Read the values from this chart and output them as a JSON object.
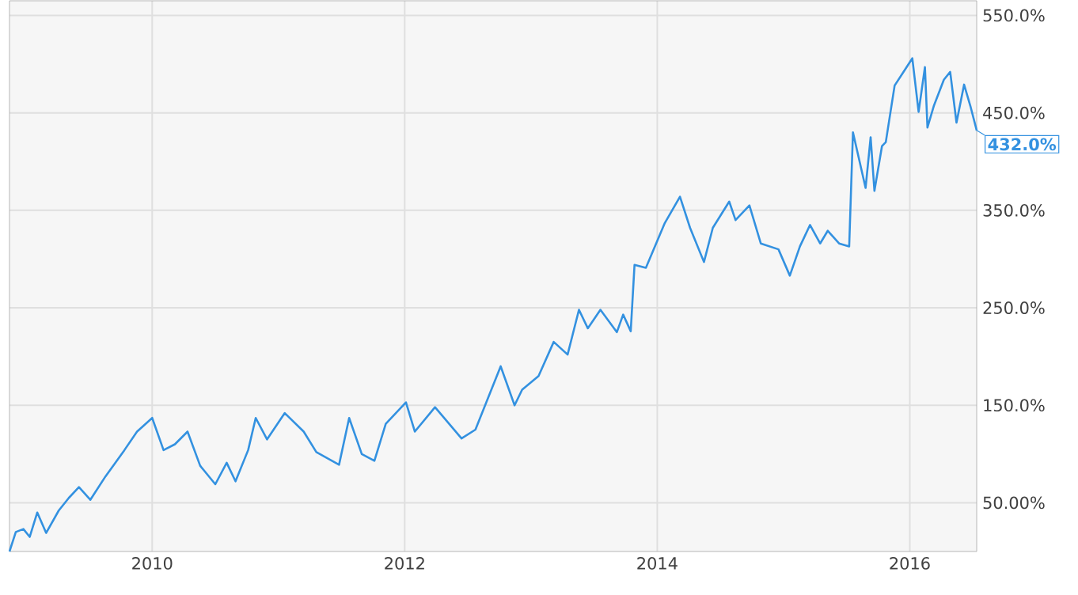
{
  "chart_data": {
    "type": "line",
    "x": [
      2008.87,
      2008.92,
      2008.98,
      2009.03,
      2009.09,
      2009.16,
      2009.26,
      2009.34,
      2009.42,
      2009.51,
      2009.63,
      2009.78,
      2009.88,
      2010.0,
      2010.09,
      2010.18,
      2010.28,
      2010.38,
      2010.5,
      2010.59,
      2010.66,
      2010.76,
      2010.82,
      2010.91,
      2011.05,
      2011.2,
      2011.3,
      2011.48,
      2011.56,
      2011.66,
      2011.76,
      2011.85,
      2012.01,
      2012.08,
      2012.24,
      2012.45,
      2012.56,
      2012.76,
      2012.87,
      2012.93,
      2013.06,
      2013.18,
      2013.29,
      2013.38,
      2013.45,
      2013.55,
      2013.68,
      2013.73,
      2013.79,
      2013.82,
      2013.91,
      2014.06,
      2014.18,
      2014.26,
      2014.37,
      2014.44,
      2014.57,
      2014.62,
      2014.73,
      2014.82,
      2014.96,
      2015.05,
      2015.13,
      2015.21,
      2015.29,
      2015.35,
      2015.44,
      2015.52,
      2015.55,
      2015.65,
      2015.69,
      2015.72,
      2015.78,
      2015.81,
      2015.88,
      2015.96,
      2016.02,
      2016.07,
      2016.12,
      2016.14,
      2016.19,
      2016.27,
      2016.32,
      2016.37,
      2016.43,
      2016.48,
      2016.53
    ],
    "series": [
      {
        "color": "#3391e0",
        "values": [
          0,
          20,
          23,
          15,
          40,
          19,
          42,
          55,
          66,
          53,
          77,
          104,
          123,
          137,
          104,
          110,
          123,
          88,
          69,
          91,
          72,
          104,
          137,
          115,
          142,
          123,
          102,
          89,
          137,
          100,
          93,
          131,
          153,
          123,
          148,
          116,
          125,
          190,
          150,
          166,
          180,
          215,
          202,
          248,
          229,
          248,
          225,
          243,
          226,
          294,
          291,
          337,
          364,
          332,
          297,
          332,
          359,
          340,
          355,
          316,
          310,
          283,
          313,
          335,
          316,
          329,
          316,
          313,
          430,
          373,
          425,
          370,
          416,
          420,
          478,
          494,
          506,
          451,
          497,
          435,
          457,
          484,
          492,
          440,
          479,
          457,
          432
        ]
      }
    ],
    "xlim": [
      2008.87,
      2016.53
    ],
    "ylim": [
      0,
      565
    ],
    "xticks": [
      2010,
      2012,
      2014,
      2016
    ],
    "yticks": [
      {
        "value": 50,
        "label": "50.00%"
      },
      {
        "value": 150,
        "label": "150.0%"
      },
      {
        "value": 250,
        "label": "250.0%"
      },
      {
        "value": 350,
        "label": "350.0%"
      },
      {
        "value": 450,
        "label": "450.0%"
      },
      {
        "value": 550,
        "label": "550.0%"
      }
    ],
    "grid": true,
    "annotations": [
      {
        "text": "432.0%",
        "x": 2016.53,
        "y": 432
      }
    ]
  }
}
